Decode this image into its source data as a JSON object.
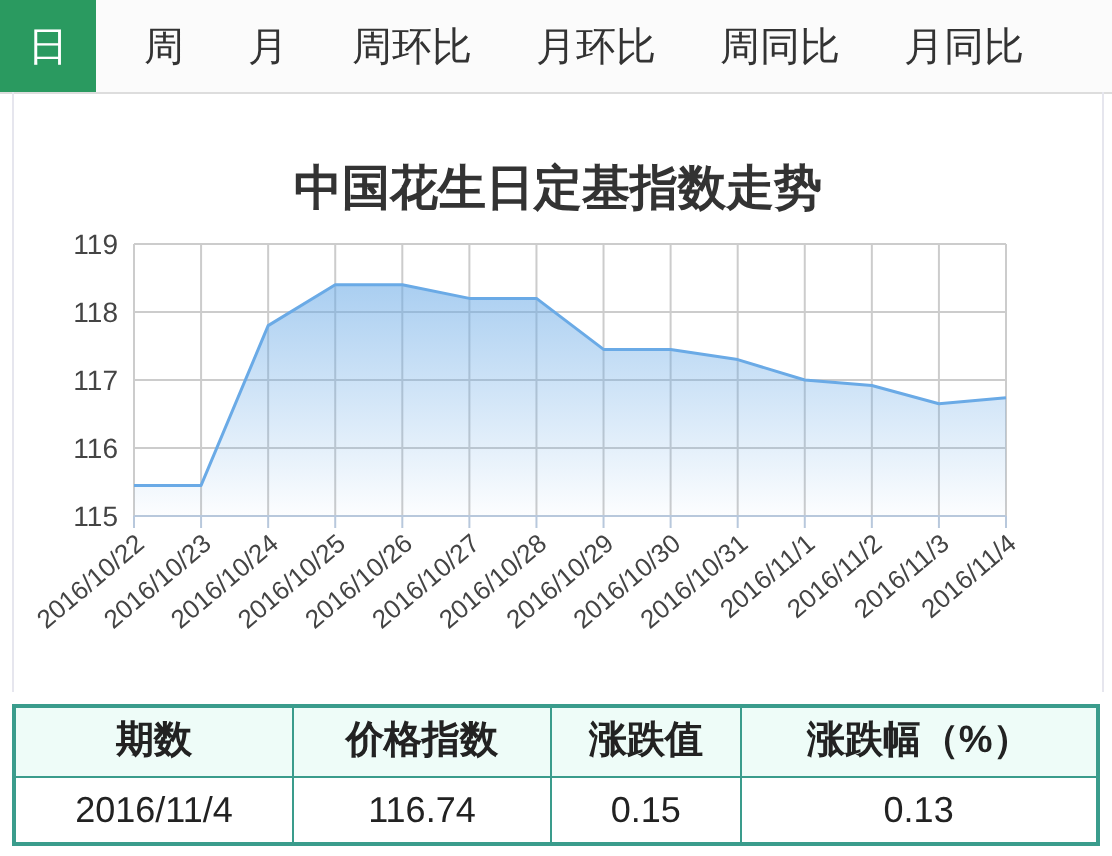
{
  "chart_data": {
    "type": "area",
    "title": "中国花生日定基指数走势",
    "categories": [
      "2016/10/22",
      "2016/10/23",
      "2016/10/24",
      "2016/10/25",
      "2016/10/26",
      "2016/10/27",
      "2016/10/28",
      "2016/10/29",
      "2016/10/30",
      "2016/10/31",
      "2016/11/1",
      "2016/11/2",
      "2016/11/3",
      "2016/11/4"
    ],
    "series": [
      {
        "color": "#6aaae6",
        "values": [
          115.45,
          115.45,
          117.8,
          118.4,
          118.4,
          118.2,
          118.2,
          117.45,
          117.45,
          117.3,
          117.0,
          116.92,
          116.65,
          116.74
        ]
      }
    ],
    "ylim": [
      115,
      119
    ],
    "yticks": [
      115,
      116,
      117,
      118,
      119
    ],
    "grid": true,
    "annotations": [
      "日",
      "周",
      "月",
      "周环比",
      "月环比",
      "周同比",
      "月同比",
      "期数",
      "价格指数",
      "涨跌值",
      "涨跌幅（%）",
      "2016/11/4",
      "116.74",
      "0.15",
      "0.13"
    ]
  }
}
